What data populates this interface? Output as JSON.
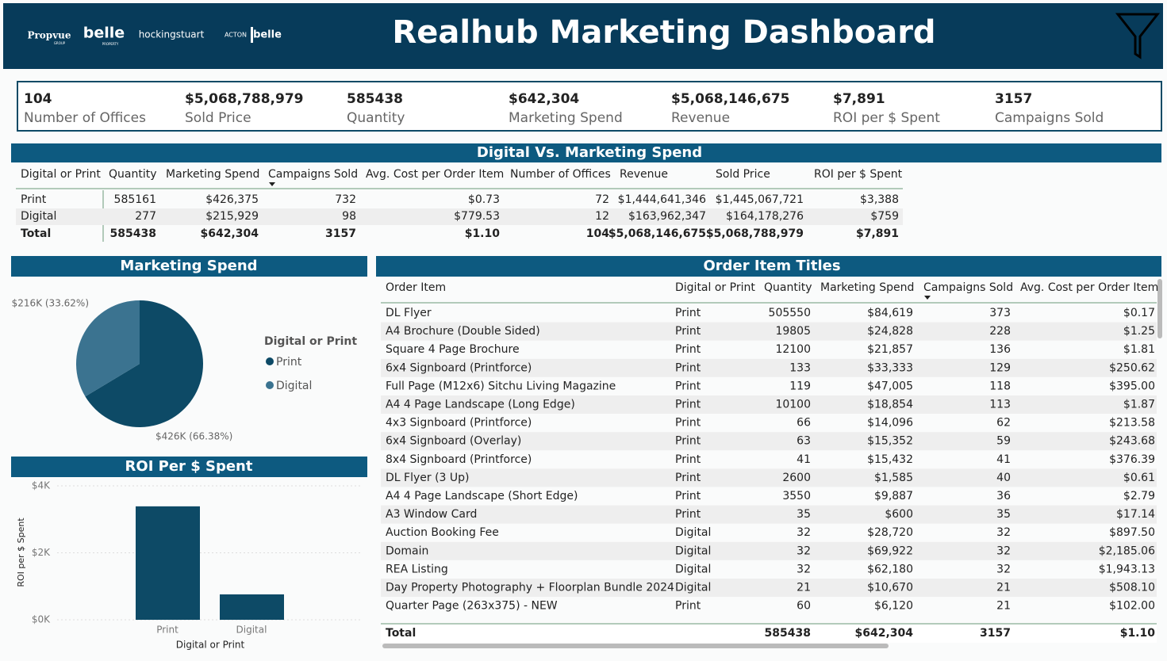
{
  "header": {
    "title": "Realhub Marketing Dashboard",
    "logos": [
      "Propvue",
      "GROUP",
      "belle",
      "PROPERTY",
      "hockingstuart",
      "ACTON",
      "belle"
    ]
  },
  "kpis": [
    {
      "value": "104",
      "label": "Number of Offices"
    },
    {
      "value": "$5,068,788,979",
      "label": "Sold Price"
    },
    {
      "value": "585438",
      "label": "Quantity"
    },
    {
      "value": "$642,304",
      "label": "Marketing Spend"
    },
    {
      "value": "$5,068,146,675",
      "label": "Revenue"
    },
    {
      "value": "$7,891",
      "label": "ROI per $ Spent"
    },
    {
      "value": "3157",
      "label": "Campaigns Sold"
    }
  ],
  "summary_table": {
    "title": "Digital Vs. Marketing Spend",
    "columns": [
      "Digital or Print",
      "Quantity",
      "Marketing Spend",
      "Campaigns Sold",
      "Avg. Cost per Order Item",
      "Number of Offices",
      "Revenue",
      "Sold Price",
      "ROI per $ Spent"
    ],
    "rows": [
      [
        "Print",
        "585161",
        "$426,375",
        "732",
        "$0.73",
        "72",
        "$1,444,641,346",
        "$1,445,067,721",
        "$3,388"
      ],
      [
        "Digital",
        "277",
        "$215,929",
        "98",
        "$779.53",
        "12",
        "$163,962,347",
        "$164,178,276",
        "$759"
      ],
      [
        "Total",
        "585438",
        "$642,304",
        "3157",
        "$1.10",
        "104",
        "$5,068,146,675",
        "$5,068,788,979",
        "$7,891"
      ]
    ]
  },
  "order_table": {
    "title": "Order Item Titles",
    "columns": [
      "Order Item",
      "Digital or Print",
      "Quantity",
      "Marketing Spend",
      "Campaigns Sold",
      "Avg. Cost per Order Item"
    ],
    "rows": [
      [
        "DL Flyer",
        "Print",
        "505550",
        "$84,619",
        "373",
        "$0.17"
      ],
      [
        "A4 Brochure (Double Sided)",
        "Print",
        "19805",
        "$24,828",
        "228",
        "$1.25"
      ],
      [
        "Square 4 Page Brochure",
        "Print",
        "12100",
        "$21,857",
        "136",
        "$1.81"
      ],
      [
        "6x4 Signboard (Printforce)",
        "Print",
        "133",
        "$33,333",
        "129",
        "$250.62"
      ],
      [
        "Full Page (M12x6) Sitchu Living Magazine",
        "Print",
        "119",
        "$47,005",
        "118",
        "$395.00"
      ],
      [
        "A4 4 Page Landscape (Long Edge)",
        "Print",
        "10100",
        "$18,854",
        "113",
        "$1.87"
      ],
      [
        "4x3 Signboard (Printforce)",
        "Print",
        "66",
        "$14,096",
        "62",
        "$213.58"
      ],
      [
        "6x4 Signboard (Overlay)",
        "Print",
        "63",
        "$15,352",
        "59",
        "$243.68"
      ],
      [
        "8x4 Signboard (Printforce)",
        "Print",
        "41",
        "$15,432",
        "41",
        "$376.39"
      ],
      [
        "DL Flyer (3 Up)",
        "Print",
        "2600",
        "$1,585",
        "40",
        "$0.61"
      ],
      [
        "A4 4 Page Landscape (Short Edge)",
        "Print",
        "3550",
        "$9,887",
        "36",
        "$2.79"
      ],
      [
        "A3 Window Card",
        "Print",
        "35",
        "$600",
        "35",
        "$17.14"
      ],
      [
        "Auction Booking Fee",
        "Digital",
        "32",
        "$28,720",
        "32",
        "$897.50"
      ],
      [
        "Domain",
        "Digital",
        "32",
        "$69,922",
        "32",
        "$2,185.06"
      ],
      [
        "REA Listing",
        "Digital",
        "32",
        "$62,180",
        "32",
        "$1,943.13"
      ],
      [
        "Day Property Photography + Floorplan Bundle 2024",
        "Digital",
        "21",
        "$10,670",
        "21",
        "$508.10"
      ],
      [
        "Quarter Page (263x375) - NEW",
        "Print",
        "60",
        "$6,120",
        "21",
        "$102.00"
      ]
    ],
    "total": [
      "Total",
      "",
      "585438",
      "$642,304",
      "3157",
      "$1.10"
    ]
  },
  "chart_data": [
    {
      "type": "pie",
      "title": "Marketing Spend",
      "legend_title": "Digital or Print",
      "categories": [
        "Print",
        "Digital"
      ],
      "values": [
        426375,
        215929
      ],
      "value_labels": [
        "$426K (66.38%)",
        "$216K (33.62%)"
      ],
      "colors": [
        "#0d4a66",
        "#3b7390"
      ]
    },
    {
      "type": "bar",
      "title": "ROI Per $ Spent",
      "x_label": "Digital or Print",
      "y_label": "ROI per $ Spent",
      "categories": [
        "Print",
        "Digital"
      ],
      "values": [
        3388,
        759
      ],
      "color": "#0d4a66",
      "ylim": [
        0,
        4000
      ],
      "yticks": [
        {
          "value": 0,
          "label": "$0K"
        },
        {
          "value": 2000,
          "label": "$2K"
        },
        {
          "value": 4000,
          "label": "$4K"
        }
      ],
      "grid": true
    }
  ]
}
